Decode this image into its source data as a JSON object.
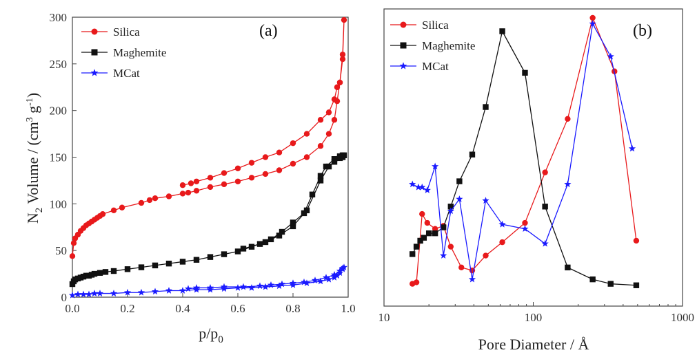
{
  "charts": [
    {
      "panel_label": "(a)",
      "xlabel_main": "p/p",
      "xlabel_sub": "0",
      "ylabel_parts": [
        "N",
        "2",
        " Volume / (cm",
        "3",
        " g",
        "-1",
        ")"
      ]
    },
    {
      "panel_label": "(b)",
      "xlabel": "Pore Diameter / Å"
    }
  ],
  "chart_data": [
    {
      "type": "line",
      "xlabel": "p/p0",
      "ylabel": "N2 Volume / (cm3 g-1)",
      "xlim": [
        0.0,
        1.0
      ],
      "ylim": [
        0,
        300
      ],
      "xticks": [
        "0.0",
        "0.2",
        "0.4",
        "0.6",
        "0.8",
        "1.0"
      ],
      "yticks": [
        "0",
        "50",
        "100",
        "150",
        "200",
        "250",
        "300"
      ],
      "legend": "top-left",
      "grid": false,
      "series": [
        {
          "name": "Silica",
          "color": "#e8191b",
          "marker": "circle",
          "x": [
            0.0,
            0.005,
            0.01,
            0.02,
            0.03,
            0.04,
            0.05,
            0.06,
            0.07,
            0.08,
            0.09,
            0.1,
            0.11,
            0.15,
            0.18,
            0.25,
            0.28,
            0.3,
            0.35,
            0.4,
            0.42,
            0.45,
            0.5,
            0.55,
            0.6,
            0.65,
            0.7,
            0.75,
            0.8,
            0.85,
            0.9,
            0.93,
            0.95,
            0.96,
            0.97,
            0.98,
            0.985,
            0.98,
            0.97,
            0.96,
            0.95,
            0.93,
            0.9,
            0.85,
            0.8,
            0.75,
            0.7,
            0.65,
            0.6,
            0.55,
            0.5,
            0.45,
            0.43,
            0.4
          ],
          "y": [
            44,
            58,
            63,
            67,
            71,
            74,
            77,
            79,
            81,
            83,
            85,
            87,
            89,
            93,
            96,
            101,
            104,
            106,
            108,
            111,
            112,
            114,
            118,
            121,
            124,
            128,
            132,
            136,
            143,
            150,
            162,
            175,
            190,
            210,
            230,
            255,
            297,
            260,
            230,
            225,
            212,
            198,
            190,
            175,
            165,
            155,
            150,
            144,
            138,
            133,
            128,
            124,
            122,
            120
          ]
        },
        {
          "name": "Maghemite",
          "color": "#111111",
          "marker": "square",
          "x": [
            0.0,
            0.005,
            0.01,
            0.02,
            0.03,
            0.04,
            0.05,
            0.06,
            0.07,
            0.08,
            0.1,
            0.12,
            0.15,
            0.2,
            0.25,
            0.3,
            0.35,
            0.4,
            0.45,
            0.5,
            0.55,
            0.6,
            0.65,
            0.7,
            0.75,
            0.8,
            0.85,
            0.9,
            0.93,
            0.95,
            0.97,
            0.98,
            0.985,
            0.98,
            0.97,
            0.95,
            0.92,
            0.9,
            0.87,
            0.84,
            0.8,
            0.76,
            0.72,
            0.68,
            0.62
          ],
          "y": [
            14,
            17,
            19,
            20,
            21,
            22,
            23,
            23,
            24,
            25,
            26,
            27,
            28,
            30,
            32,
            34,
            36,
            38,
            40,
            43,
            46,
            49,
            54,
            59,
            66,
            76,
            93,
            125,
            140,
            145,
            149,
            150,
            152,
            152,
            151,
            148,
            140,
            130,
            110,
            90,
            80,
            70,
            62,
            57,
            52
          ]
        },
        {
          "name": "MCat",
          "color": "#1a1aff",
          "marker": "star",
          "x": [
            0.0,
            0.02,
            0.04,
            0.06,
            0.08,
            0.1,
            0.15,
            0.2,
            0.25,
            0.3,
            0.35,
            0.4,
            0.45,
            0.5,
            0.55,
            0.6,
            0.65,
            0.7,
            0.75,
            0.8,
            0.85,
            0.9,
            0.93,
            0.95,
            0.96,
            0.97,
            0.98,
            0.985,
            0.98,
            0.97,
            0.95,
            0.92,
            0.88,
            0.84,
            0.8,
            0.76,
            0.72,
            0.68,
            0.62,
            0.55,
            0.5,
            0.45,
            0.42
          ],
          "y": [
            2,
            3,
            3,
            3,
            4,
            4,
            4,
            5,
            5,
            6,
            7,
            7,
            8,
            8,
            9,
            10,
            10,
            11,
            12,
            13,
            15,
            17,
            19,
            21,
            23,
            26,
            30,
            32,
            31,
            28,
            24,
            21,
            18,
            16,
            15,
            14,
            13,
            12,
            11,
            11,
            10,
            10,
            9
          ]
        }
      ]
    },
    {
      "type": "line",
      "xlabel": "Pore Diameter / Å",
      "xscale": "log",
      "xlim": [
        10,
        1000
      ],
      "xticks": [
        "10",
        "100",
        "1000"
      ],
      "ylim": [
        0,
        1
      ],
      "yticks": [],
      "legend": "top-left",
      "grid": false,
      "series": [
        {
          "name": "Silica",
          "color": "#e8191b",
          "marker": "circle",
          "x": [
            15.5,
            16.5,
            18,
            19.5,
            22,
            25,
            28,
            33,
            39,
            48,
            62,
            88,
            120,
            170,
            250,
            350,
            490
          ],
          "y": [
            0.075,
            0.08,
            0.31,
            0.28,
            0.26,
            0.27,
            0.2,
            0.13,
            0.12,
            0.17,
            0.215,
            0.28,
            0.45,
            0.63,
            0.97,
            0.79,
            0.22
          ]
        },
        {
          "name": "Maghemite",
          "color": "#111111",
          "marker": "square",
          "x": [
            15.5,
            16.5,
            17.5,
            18.5,
            20,
            22,
            25,
            28,
            32,
            39,
            48,
            62,
            88,
            120,
            170,
            250,
            330,
            490
          ],
          "y": [
            0.175,
            0.2,
            0.22,
            0.23,
            0.245,
            0.245,
            0.265,
            0.335,
            0.42,
            0.51,
            0.67,
            0.925,
            0.785,
            0.335,
            0.13,
            0.09,
            0.075,
            0.07
          ]
        },
        {
          "name": "MCat",
          "color": "#1a1aff",
          "marker": "star",
          "x": [
            15.5,
            17,
            18,
            19.5,
            22,
            25,
            28,
            32,
            39,
            48,
            62,
            88,
            120,
            170,
            250,
            330,
            460
          ],
          "y": [
            0.41,
            0.4,
            0.4,
            0.39,
            0.47,
            0.17,
            0.32,
            0.36,
            0.09,
            0.355,
            0.275,
            0.26,
            0.21,
            0.41,
            0.95,
            0.84,
            0.53
          ]
        }
      ]
    }
  ]
}
